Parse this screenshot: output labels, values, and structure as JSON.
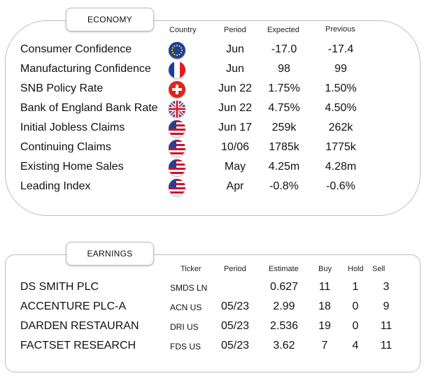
{
  "economy": {
    "title": "ECONOMY",
    "headers": {
      "country": "Country",
      "period": "Period",
      "expected": "Expected",
      "previous": "Previous"
    },
    "rows": [
      {
        "name": "Consumer Confidence",
        "flag": "eu-flag-icon",
        "period": "Jun",
        "expected": "-17.0",
        "previous": "-17.4"
      },
      {
        "name": "Manufacturing Confidence",
        "flag": "france-flag-icon",
        "period": "Jun",
        "expected": "98",
        "previous": "99"
      },
      {
        "name": "SNB Policy Rate",
        "flag": "switzerland-flag-icon",
        "period": "Jun 22",
        "expected": "1.75%",
        "previous": "1.50%"
      },
      {
        "name": "Bank of England Bank Rate",
        "flag": "uk-flag-icon",
        "period": "Jun 22",
        "expected": "4.75%",
        "previous": "4.50%"
      },
      {
        "name": "Initial Jobless Claims",
        "flag": "us-flag-icon",
        "period": "Jun 17",
        "expected": "259k",
        "previous": "262k"
      },
      {
        "name": "Continuing Claims",
        "flag": "us-flag-icon",
        "period": "10/06",
        "expected": "1785k",
        "previous": "1775k"
      },
      {
        "name": "Existing Home Sales",
        "flag": "us-flag-icon",
        "period": "May",
        "expected": "4.25m",
        "previous": "4.28m"
      },
      {
        "name": "Leading Index",
        "flag": "us-flag-icon",
        "period": "Apr",
        "expected": "-0.8%",
        "previous": "-0.6%"
      }
    ]
  },
  "earnings": {
    "title": "EARNINGS",
    "headers": {
      "ticker": "Ticker",
      "period": "Period",
      "estimate": "Estimate",
      "buy": "Buy",
      "hold": "Hold",
      "sell": "Sell"
    },
    "rows": [
      {
        "name": "DS SMITH PLC",
        "ticker": "SMDS LN",
        "period": "",
        "estimate": "0.627",
        "buy": "11",
        "hold": "1",
        "sell": "3"
      },
      {
        "name": "ACCENTURE PLC-A",
        "ticker": "ACN US",
        "period": "05/23",
        "estimate": "2.99",
        "buy": "18",
        "hold": "0",
        "sell": "9"
      },
      {
        "name": "DARDEN RESTAURAN",
        "ticker": "DRI US",
        "period": "05/23",
        "estimate": "2.536",
        "buy": "19",
        "hold": "0",
        "sell": "11"
      },
      {
        "name": "FACTSET RESEARCH",
        "ticker": "FDS US",
        "period": "05/23",
        "estimate": "3.62",
        "buy": "7",
        "hold": "4",
        "sell": "11"
      }
    ]
  },
  "colors": {
    "border": "#bdbdbd",
    "text": "#111111"
  }
}
